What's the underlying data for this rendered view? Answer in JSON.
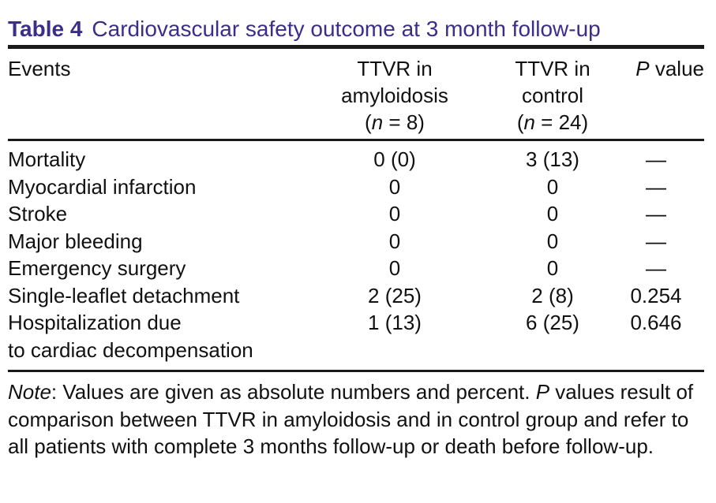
{
  "caption": {
    "label": "Table 4",
    "title": "Cardiovascular safety outcome at 3 month follow-up"
  },
  "headers": {
    "events": "Events",
    "amyloidosis_line1": "TTVR in",
    "amyloidosis_line2": "amyloidosis",
    "amyloidosis_line3_pre": "(",
    "amyloidosis_n": "n",
    "amyloidosis_line3_post": " = 8)",
    "control_line1": "TTVR in",
    "control_line2": "control",
    "control_line3_pre": "(",
    "control_n": "n",
    "control_line3_post": " = 24)",
    "p_italic": "P",
    "p_rest": " value"
  },
  "rows": [
    {
      "event": "Mortality",
      "amyloidosis": "0 (0)",
      "control": "3 (13)",
      "p": "—"
    },
    {
      "event": "Myocardial infarction",
      "amyloidosis": "0",
      "control": "0",
      "p": "—"
    },
    {
      "event": "Stroke",
      "amyloidosis": "0",
      "control": "0",
      "p": "—"
    },
    {
      "event": "Major bleeding",
      "amyloidosis": "0",
      "control": "0",
      "p": "—"
    },
    {
      "event": "Emergency surgery",
      "amyloidosis": "0",
      "control": "0",
      "p": "—"
    },
    {
      "event": "Single-leaflet detachment",
      "amyloidosis": "2 (25)",
      "control": "2 (8)",
      "p": "0.254"
    },
    {
      "event_line1": "Hospitalization due",
      "event_line2": "to cardiac decompensation",
      "amyloidosis": "1 (13)",
      "control": "6 (25)",
      "p": "0.646"
    }
  ],
  "note": {
    "label": "Note",
    "text_a": ": Values are given as absolute numbers and percent. ",
    "p_italic": "P",
    "text_b": " values result of comparison between TTVR in amyloidosis and in control group and refer to all patients with complete 3 months follow-up or death before follow-up."
  },
  "colors": {
    "caption": "#3b2e8a",
    "text": "#111111",
    "rule": "#1a1a1a"
  }
}
